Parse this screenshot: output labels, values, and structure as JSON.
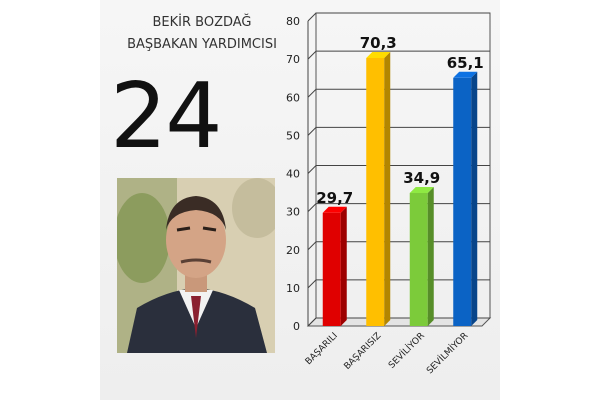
{
  "person": {
    "name": "BEKİR BOZDAĞ",
    "title": "BAŞBAKAN YARDIMCISI",
    "rank": "24"
  },
  "colors": {
    "red": "#e00000",
    "yellow": "#ffbf00",
    "green": "#7ccb3a",
    "blue": "#0b63c5"
  },
  "chart_data": {
    "type": "bar",
    "categories": [
      "BAŞARILI",
      "BAŞARISIZ",
      "SEVİLİYOR",
      "SEVİLMİYOR"
    ],
    "values": [
      29.7,
      70.3,
      34.9,
      65.1
    ],
    "value_labels": [
      "29,7",
      "70,3",
      "34,9",
      "65,1"
    ],
    "bar_colors": [
      "#e00000",
      "#ffbf00",
      "#7ccb3a",
      "#0b63c5"
    ],
    "ylim": [
      0,
      80
    ],
    "yticks": [
      0,
      10,
      20,
      30,
      40,
      50,
      60,
      70,
      80
    ],
    "grid": true,
    "legend": "none"
  }
}
